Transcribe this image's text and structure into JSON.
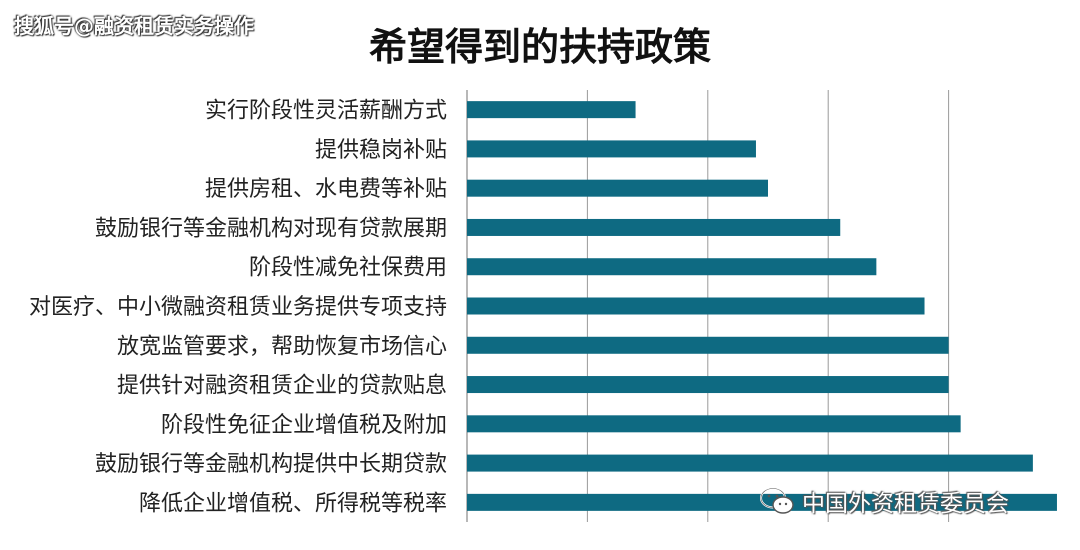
{
  "source_watermark": "搜狐号@融资租赁实务操作",
  "wechat_watermark": "中国外资租赁委员会",
  "colors": {
    "bar": "#0e6a82",
    "grid": "#9a9a9a",
    "text": "#222222"
  },
  "chart_data": {
    "type": "bar",
    "orientation": "horizontal",
    "title": "希望得到的扶持政策",
    "categories": [
      "实行阶段性灵活薪酬方式",
      "提供稳岗补贴",
      "提供房租、水电费等补贴",
      "鼓励银行等金融机构对现有贷款展期",
      "阶段性减免社保费用",
      "对医疗、中小微融资租赁业务提供专项支持",
      "放宽监管要求，帮助恢复市场信心",
      "提供针对融资租赁企业的贷款贴息",
      "阶段性免征企业增值税及附加",
      "鼓励银行等金融机构提供中长期贷款",
      "降低企业增值税、所得税等税率"
    ],
    "values": [
      14,
      24,
      25,
      31,
      34,
      38,
      40,
      40,
      41,
      47,
      49
    ],
    "xlim": [
      0,
      50
    ],
    "grid": true,
    "legend": "none"
  }
}
